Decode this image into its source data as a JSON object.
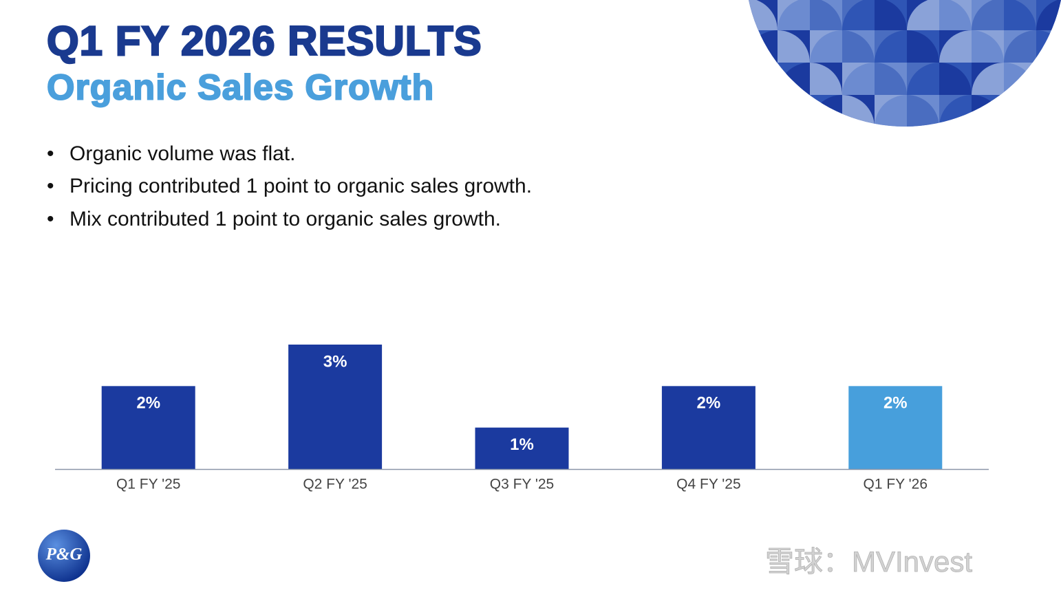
{
  "header": {
    "title": "Q1 FY 2026 RESULTS",
    "subtitle": "Organic Sales Growth"
  },
  "bullets": [
    "Organic volume was flat.",
    "Pricing contributed 1 point to organic sales growth.",
    "Mix contributed 1 point to organic sales growth."
  ],
  "chart_data": {
    "type": "bar",
    "categories": [
      "Q1 FY '25",
      "Q2 FY '25",
      "Q3 FY '25",
      "Q4 FY '25",
      "Q1 FY '26"
    ],
    "values": [
      2,
      3,
      1,
      2,
      2
    ],
    "value_labels": [
      "2%",
      "3%",
      "1%",
      "2%",
      "2%"
    ],
    "colors": [
      "#1b3a9f",
      "#1b3a9f",
      "#1b3a9f",
      "#1b3a9f",
      "#479fdc"
    ]
  },
  "logo": "P&G",
  "watermark": "雪球：MVInvest"
}
